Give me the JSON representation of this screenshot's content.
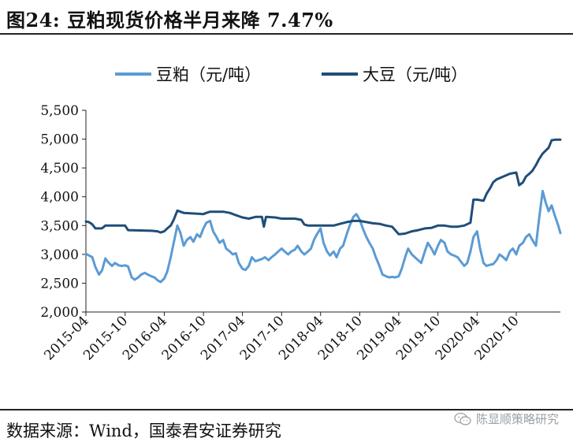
{
  "figure": {
    "title": "图24: 豆粕现货价格半月来降 7.47%",
    "source": "数据来源：Wind，国泰君安证券研究",
    "watermark": "陈显顺策略研究",
    "watermark_icon": "wechat-icon"
  },
  "chart_data": {
    "type": "line",
    "title": "",
    "xlabel": "",
    "ylabel": "",
    "ylim": [
      2000,
      5500
    ],
    "yticks": [
      2000,
      2500,
      3000,
      3500,
      4000,
      4500,
      5000,
      5500
    ],
    "ytick_labels": [
      "2,000",
      "2,500",
      "3,000",
      "3,500",
      "4,000",
      "4,500",
      "5,000",
      "5,500"
    ],
    "xlim": [
      "2015-04-01",
      "2021-04-25"
    ],
    "xticks": [
      "2015-04",
      "2015-10",
      "2016-04",
      "2016-10",
      "2017-04",
      "2017-10",
      "2018-04",
      "2018-10",
      "2019-04",
      "2019-10",
      "2020-04",
      "2020-10"
    ],
    "grid": false,
    "legend": "top",
    "series": [
      {
        "name": "豆粕（元/吨）",
        "color": "#5b9bd5",
        "points": [
          [
            "2015-04-01",
            3010
          ],
          [
            "2015-05-01",
            2950
          ],
          [
            "2015-05-15",
            2780
          ],
          [
            "2015-06-01",
            2650
          ],
          [
            "2015-06-15",
            2720
          ],
          [
            "2015-07-01",
            2930
          ],
          [
            "2015-07-15",
            2860
          ],
          [
            "2015-08-01",
            2800
          ],
          [
            "2015-08-15",
            2850
          ],
          [
            "2015-09-01",
            2810
          ],
          [
            "2015-09-15",
            2800
          ],
          [
            "2015-10-01",
            2810
          ],
          [
            "2015-10-15",
            2790
          ],
          [
            "2015-11-01",
            2600
          ],
          [
            "2015-11-15",
            2560
          ],
          [
            "2015-12-01",
            2600
          ],
          [
            "2015-12-15",
            2650
          ],
          [
            "2016-01-01",
            2680
          ],
          [
            "2016-01-15",
            2650
          ],
          [
            "2016-02-01",
            2620
          ],
          [
            "2016-02-15",
            2600
          ],
          [
            "2016-03-01",
            2550
          ],
          [
            "2016-03-15",
            2520
          ],
          [
            "2016-04-01",
            2580
          ],
          [
            "2016-04-15",
            2700
          ],
          [
            "2016-05-01",
            2950
          ],
          [
            "2016-05-15",
            3200
          ],
          [
            "2016-06-01",
            3500
          ],
          [
            "2016-06-15",
            3380
          ],
          [
            "2016-07-01",
            3150
          ],
          [
            "2016-07-15",
            3250
          ],
          [
            "2016-08-01",
            3300
          ],
          [
            "2016-08-15",
            3220
          ],
          [
            "2016-09-01",
            3350
          ],
          [
            "2016-09-15",
            3300
          ],
          [
            "2016-10-01",
            3450
          ],
          [
            "2016-10-15",
            3550
          ],
          [
            "2016-11-01",
            3580
          ],
          [
            "2016-11-15",
            3400
          ],
          [
            "2016-12-01",
            3300
          ],
          [
            "2016-12-15",
            3200
          ],
          [
            "2017-01-01",
            3250
          ],
          [
            "2017-01-15",
            3100
          ],
          [
            "2017-02-01",
            3050
          ],
          [
            "2017-02-15",
            3000
          ],
          [
            "2017-03-01",
            3020
          ],
          [
            "2017-03-15",
            2850
          ],
          [
            "2017-04-01",
            2750
          ],
          [
            "2017-04-15",
            2730
          ],
          [
            "2017-05-01",
            2800
          ],
          [
            "2017-05-15",
            2950
          ],
          [
            "2017-06-01",
            2880
          ],
          [
            "2017-06-15",
            2900
          ],
          [
            "2017-07-01",
            2920
          ],
          [
            "2017-07-15",
            2950
          ],
          [
            "2017-08-01",
            2900
          ],
          [
            "2017-08-15",
            2950
          ],
          [
            "2017-09-01",
            3000
          ],
          [
            "2017-09-15",
            3050
          ],
          [
            "2017-10-01",
            3100
          ],
          [
            "2017-10-15",
            3050
          ],
          [
            "2017-11-01",
            3000
          ],
          [
            "2017-11-15",
            3050
          ],
          [
            "2017-12-01",
            3080
          ],
          [
            "2017-12-15",
            3150
          ],
          [
            "2018-01-01",
            3050
          ],
          [
            "2018-01-15",
            3000
          ],
          [
            "2018-02-01",
            3050
          ],
          [
            "2018-02-15",
            3100
          ],
          [
            "2018-03-01",
            3250
          ],
          [
            "2018-03-15",
            3350
          ],
          [
            "2018-04-01",
            3450
          ],
          [
            "2018-04-15",
            3200
          ],
          [
            "2018-05-01",
            3050
          ],
          [
            "2018-05-15",
            2980
          ],
          [
            "2018-06-01",
            3050
          ],
          [
            "2018-06-15",
            2950
          ],
          [
            "2018-07-01",
            3100
          ],
          [
            "2018-07-15",
            3150
          ],
          [
            "2018-08-01",
            3350
          ],
          [
            "2018-08-15",
            3500
          ],
          [
            "2018-09-01",
            3650
          ],
          [
            "2018-09-15",
            3700
          ],
          [
            "2018-10-01",
            3600
          ],
          [
            "2018-10-15",
            3450
          ],
          [
            "2018-11-01",
            3300
          ],
          [
            "2018-11-15",
            3200
          ],
          [
            "2018-12-01",
            3100
          ],
          [
            "2018-12-15",
            2950
          ],
          [
            "2019-01-01",
            2800
          ],
          [
            "2019-01-15",
            2650
          ],
          [
            "2019-02-01",
            2620
          ],
          [
            "2019-02-15",
            2600
          ],
          [
            "2019-03-01",
            2610
          ],
          [
            "2019-03-15",
            2600
          ],
          [
            "2019-04-01",
            2620
          ],
          [
            "2019-04-15",
            2750
          ],
          [
            "2019-05-01",
            2950
          ],
          [
            "2019-05-15",
            3100
          ],
          [
            "2019-06-01",
            3000
          ],
          [
            "2019-06-15",
            2950
          ],
          [
            "2019-07-01",
            2900
          ],
          [
            "2019-07-15",
            2850
          ],
          [
            "2019-08-01",
            3050
          ],
          [
            "2019-08-15",
            3200
          ],
          [
            "2019-09-01",
            3100
          ],
          [
            "2019-09-15",
            3000
          ],
          [
            "2019-10-01",
            3150
          ],
          [
            "2019-10-15",
            3250
          ],
          [
            "2019-11-01",
            3200
          ],
          [
            "2019-11-15",
            3050
          ],
          [
            "2019-12-01",
            3000
          ],
          [
            "2019-12-15",
            2980
          ],
          [
            "2020-01-01",
            2950
          ],
          [
            "2020-01-15",
            2880
          ],
          [
            "2020-02-01",
            2800
          ],
          [
            "2020-02-15",
            2850
          ],
          [
            "2020-03-01",
            3050
          ],
          [
            "2020-03-15",
            3300
          ],
          [
            "2020-04-01",
            3400
          ],
          [
            "2020-04-15",
            3100
          ],
          [
            "2020-05-01",
            2850
          ],
          [
            "2020-05-15",
            2800
          ],
          [
            "2020-06-01",
            2820
          ],
          [
            "2020-06-15",
            2830
          ],
          [
            "2020-07-01",
            2900
          ],
          [
            "2020-07-15",
            3000
          ],
          [
            "2020-08-01",
            2950
          ],
          [
            "2020-08-15",
            2900
          ],
          [
            "2020-09-01",
            3050
          ],
          [
            "2020-09-15",
            3100
          ],
          [
            "2020-10-01",
            3000
          ],
          [
            "2020-10-15",
            3150
          ],
          [
            "2020-11-01",
            3200
          ],
          [
            "2020-11-15",
            3300
          ],
          [
            "2020-12-01",
            3350
          ],
          [
            "2020-12-15",
            3250
          ],
          [
            "2021-01-01",
            3150
          ],
          [
            "2021-01-15",
            3600
          ],
          [
            "2021-02-01",
            4100
          ],
          [
            "2021-02-15",
            3900
          ],
          [
            "2021-03-01",
            3750
          ],
          [
            "2021-03-15",
            3850
          ],
          [
            "2021-04-01",
            3650
          ],
          [
            "2021-04-15",
            3500
          ],
          [
            "2021-04-25",
            3370
          ]
        ]
      },
      {
        "name": "大豆（元/吨）",
        "color": "#1f4e79",
        "points": [
          [
            "2015-04-01",
            3570
          ],
          [
            "2015-04-15",
            3560
          ],
          [
            "2015-05-01",
            3520
          ],
          [
            "2015-05-15",
            3450
          ],
          [
            "2015-06-15",
            3450
          ],
          [
            "2015-07-01",
            3500
          ],
          [
            "2015-09-15",
            3500
          ],
          [
            "2015-10-01",
            3500
          ],
          [
            "2015-10-15",
            3420
          ],
          [
            "2016-02-01",
            3410
          ],
          [
            "2016-03-01",
            3400
          ],
          [
            "2016-03-15",
            3380
          ],
          [
            "2016-04-01",
            3400
          ],
          [
            "2016-04-15",
            3450
          ],
          [
            "2016-05-01",
            3500
          ],
          [
            "2016-05-15",
            3600
          ],
          [
            "2016-06-01",
            3760
          ],
          [
            "2016-06-15",
            3740
          ],
          [
            "2016-07-01",
            3720
          ],
          [
            "2016-10-01",
            3700
          ],
          [
            "2016-10-15",
            3720
          ],
          [
            "2016-11-01",
            3740
          ],
          [
            "2017-01-01",
            3740
          ],
          [
            "2017-02-01",
            3720
          ],
          [
            "2017-03-01",
            3680
          ],
          [
            "2017-04-01",
            3640
          ],
          [
            "2017-05-01",
            3620
          ],
          [
            "2017-06-01",
            3650
          ],
          [
            "2017-07-01",
            3650
          ],
          [
            "2017-07-10",
            3480
          ],
          [
            "2017-07-20",
            3650
          ],
          [
            "2017-09-01",
            3640
          ],
          [
            "2017-10-01",
            3620
          ],
          [
            "2017-12-01",
            3620
          ],
          [
            "2018-01-01",
            3600
          ],
          [
            "2018-01-15",
            3520
          ],
          [
            "2018-02-01",
            3500
          ],
          [
            "2018-05-01",
            3500
          ],
          [
            "2018-06-01",
            3500
          ],
          [
            "2018-07-01",
            3530
          ],
          [
            "2018-08-01",
            3560
          ],
          [
            "2018-09-01",
            3580
          ],
          [
            "2018-10-01",
            3580
          ],
          [
            "2018-11-01",
            3560
          ],
          [
            "2018-12-01",
            3540
          ],
          [
            "2019-01-01",
            3530
          ],
          [
            "2019-02-01",
            3500
          ],
          [
            "2019-03-01",
            3480
          ],
          [
            "2019-04-01",
            3350
          ],
          [
            "2019-05-01",
            3360
          ],
          [
            "2019-06-01",
            3400
          ],
          [
            "2019-07-01",
            3420
          ],
          [
            "2019-08-01",
            3450
          ],
          [
            "2019-09-01",
            3460
          ],
          [
            "2019-10-01",
            3500
          ],
          [
            "2019-11-01",
            3500
          ],
          [
            "2019-12-01",
            3480
          ],
          [
            "2020-01-01",
            3480
          ],
          [
            "2020-02-01",
            3500
          ],
          [
            "2020-03-01",
            3550
          ],
          [
            "2020-03-15",
            3950
          ],
          [
            "2020-04-01",
            3950
          ],
          [
            "2020-05-01",
            3930
          ],
          [
            "2020-05-15",
            4050
          ],
          [
            "2020-06-01",
            4150
          ],
          [
            "2020-06-15",
            4250
          ],
          [
            "2020-07-01",
            4300
          ],
          [
            "2020-08-01",
            4350
          ],
          [
            "2020-09-01",
            4400
          ],
          [
            "2020-10-01",
            4420
          ],
          [
            "2020-10-15",
            4200
          ],
          [
            "2020-11-01",
            4250
          ],
          [
            "2020-11-15",
            4350
          ],
          [
            "2020-12-01",
            4400
          ],
          [
            "2020-12-15",
            4450
          ],
          [
            "2021-01-01",
            4550
          ],
          [
            "2021-01-15",
            4650
          ],
          [
            "2021-02-01",
            4750
          ],
          [
            "2021-02-15",
            4800
          ],
          [
            "2021-03-01",
            4850
          ],
          [
            "2021-03-15",
            4980
          ],
          [
            "2021-04-01",
            4990
          ],
          [
            "2021-04-25",
            4990
          ]
        ]
      }
    ]
  }
}
